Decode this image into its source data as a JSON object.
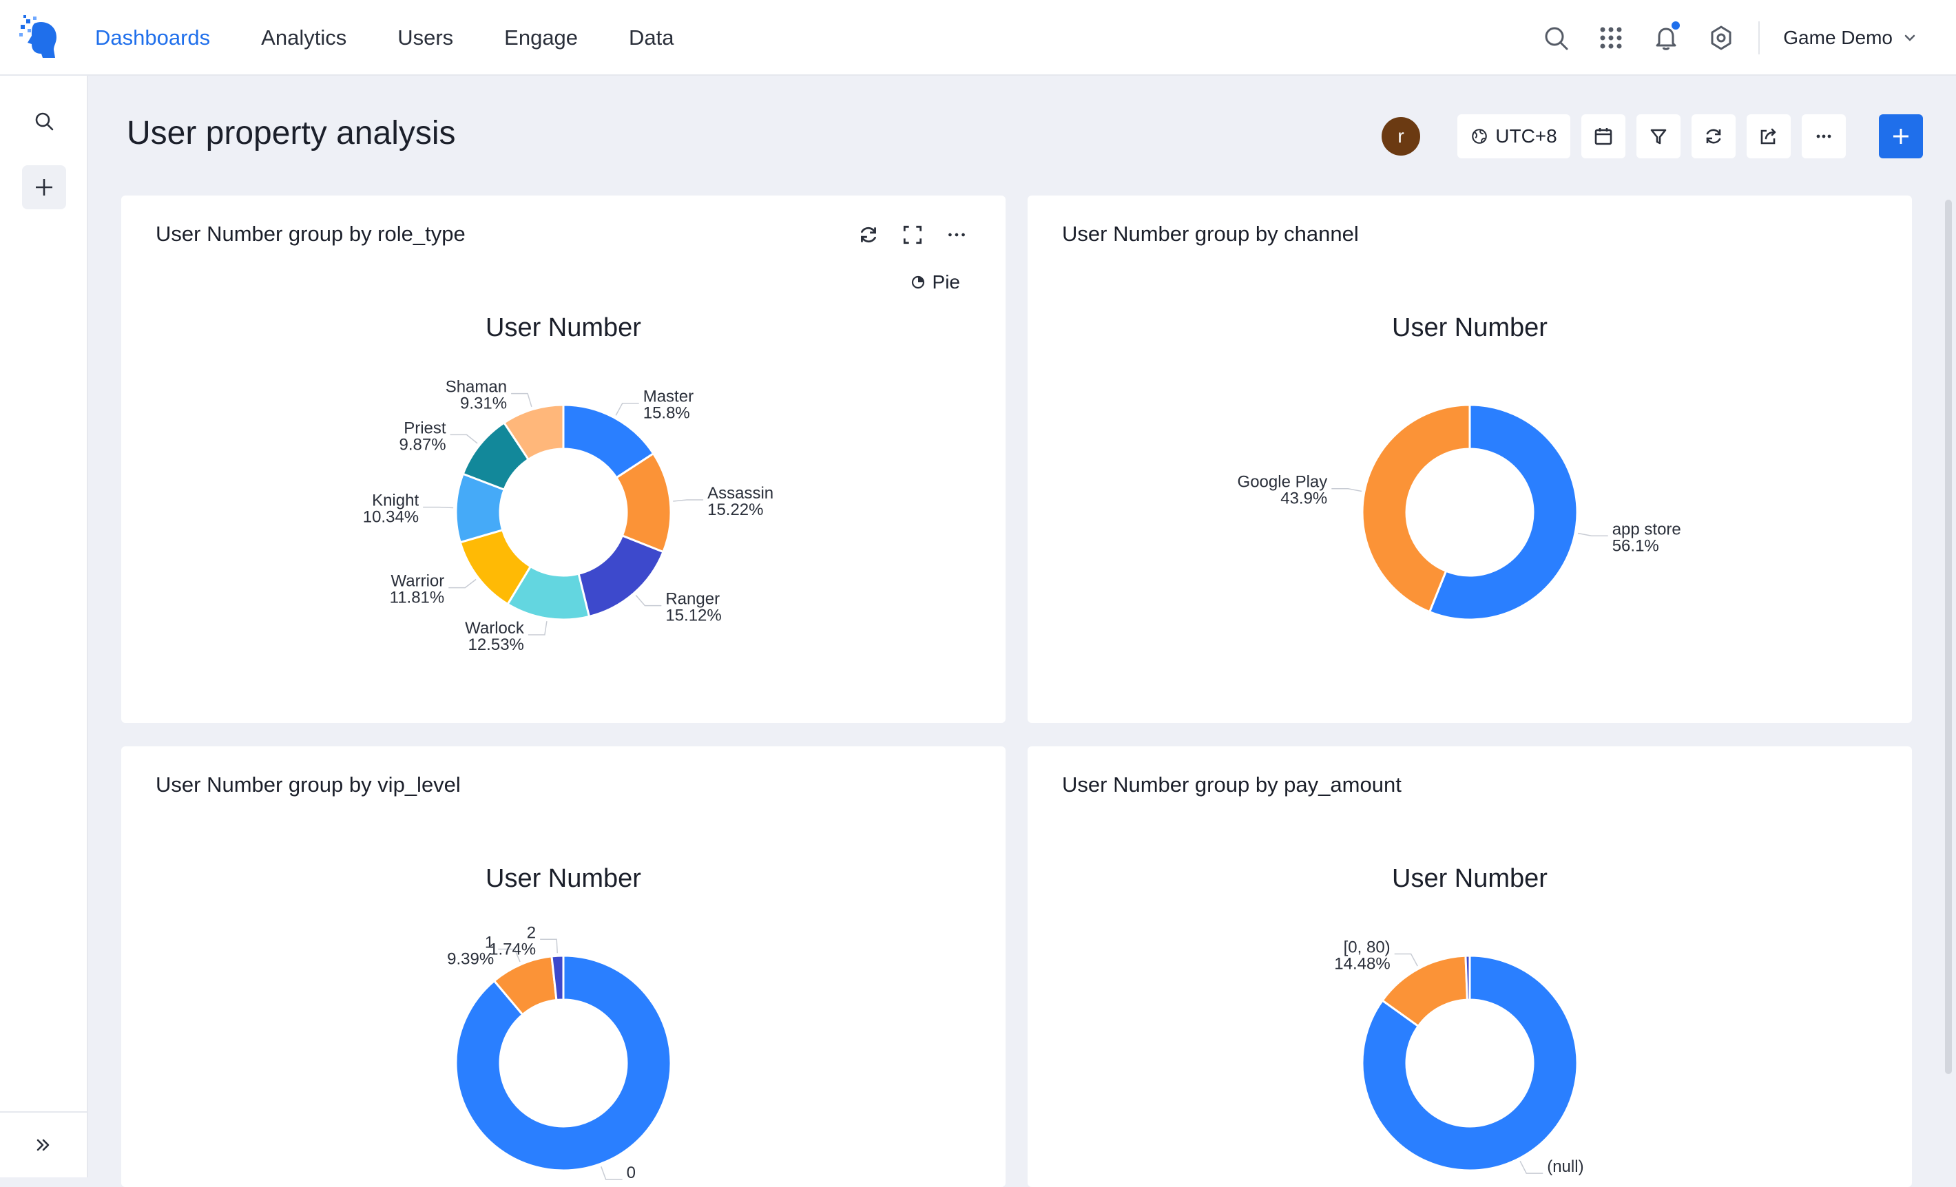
{
  "nav": {
    "items": [
      {
        "label": "Dashboards",
        "active": true
      },
      {
        "label": "Analytics",
        "active": false
      },
      {
        "label": "Users",
        "active": false
      },
      {
        "label": "Engage",
        "active": false
      },
      {
        "label": "Data",
        "active": false
      }
    ],
    "icons": [
      "search-icon",
      "apps-grid-icon",
      "bell-icon",
      "gear-icon"
    ],
    "project_label": "Game Demo"
  },
  "header": {
    "title": "User property analysis",
    "avatar_initial": "r",
    "timezone": "UTC+8"
  },
  "colors": {
    "accent": "#1f6feb",
    "series": [
      "#2a7fff",
      "#fb9337",
      "#3d49cc",
      "#63d6e0",
      "#ffba05",
      "#45aaf8",
      "#12889a",
      "#ffb77a"
    ]
  },
  "cards": [
    {
      "title": "User Number group by role_type",
      "chart_type_label": "Pie",
      "show_actions": true,
      "chart_data": {
        "type": "pie",
        "title": "User Number",
        "slices": [
          {
            "name": "Master",
            "value": 15.8,
            "label": "15.8%",
            "color": "#2a7fff"
          },
          {
            "name": "Assassin",
            "value": 15.22,
            "label": "15.22%",
            "color": "#fb9337"
          },
          {
            "name": "Ranger",
            "value": 15.12,
            "label": "15.12%",
            "color": "#3d49cc"
          },
          {
            "name": "Warlock",
            "value": 12.53,
            "label": "12.53%",
            "color": "#63d6e0"
          },
          {
            "name": "Warrior",
            "value": 11.81,
            "label": "11.81%",
            "color": "#ffba05"
          },
          {
            "name": "Knight",
            "value": 10.34,
            "label": "10.34%",
            "color": "#45aaf8"
          },
          {
            "name": "Priest",
            "value": 9.87,
            "label": "9.87%",
            "color": "#12889a"
          },
          {
            "name": "Shaman",
            "value": 9.31,
            "label": "9.31%",
            "color": "#ffb77a"
          }
        ]
      }
    },
    {
      "title": "User Number group by channel",
      "chart_type_label": "",
      "show_actions": false,
      "chart_data": {
        "type": "pie",
        "title": "User Number",
        "slices": [
          {
            "name": "app store",
            "value": 56.1,
            "label": "56.1%",
            "color": "#2a7fff"
          },
          {
            "name": "Google Play",
            "value": 43.9,
            "label": "43.9%",
            "color": "#fb9337"
          }
        ]
      }
    },
    {
      "title": "User Number group by vip_level",
      "chart_type_label": "",
      "show_actions": false,
      "chart_data": {
        "type": "pie",
        "title": "User Number",
        "slices": [
          {
            "name": "0",
            "value": 88.87,
            "label": "",
            "color": "#2a7fff"
          },
          {
            "name": "1",
            "value": 9.39,
            "label": "9.39%",
            "color": "#fb9337"
          },
          {
            "name": "2",
            "value": 1.74,
            "label": "1.74%",
            "color": "#3d49cc"
          }
        ]
      }
    },
    {
      "title": "User Number group by pay_amount",
      "chart_type_label": "",
      "show_actions": false,
      "chart_data": {
        "type": "pie",
        "title": "User Number",
        "slices": [
          {
            "name": "(null)",
            "value": 84.9,
            "label": "",
            "color": "#2a7fff"
          },
          {
            "name": "[0, 80)",
            "value": 14.48,
            "label": "14.48%",
            "color": "#fb9337"
          },
          {
            "name": "",
            "value": 0.62,
            "label": "",
            "color": "#3d49cc"
          }
        ]
      }
    }
  ]
}
